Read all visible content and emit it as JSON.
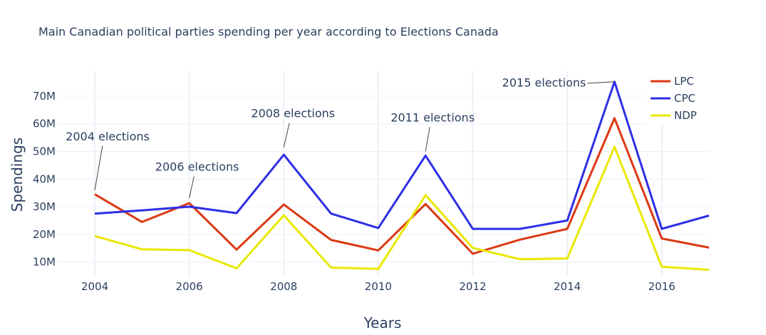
{
  "chart_data": {
    "type": "line",
    "title": "Main Canadian political parties spending per year according to Elections Canada",
    "xlabel": "Years",
    "ylabel": "Spendings",
    "x": [
      2004,
      2005,
      2006,
      2007,
      2008,
      2009,
      2010,
      2011,
      2012,
      2013,
      2014,
      2015,
      2016,
      2017
    ],
    "xlim": [
      2003.2,
      2017
    ],
    "ylim": [
      5000000,
      79000000
    ],
    "x_ticks": [
      2004,
      2006,
      2008,
      2010,
      2012,
      2014,
      2016
    ],
    "x_tick_labels": [
      "2004",
      "2006",
      "2008",
      "2010",
      "2012",
      "2014",
      "2016"
    ],
    "y_ticks": [
      10000000,
      20000000,
      30000000,
      40000000,
      50000000,
      60000000,
      70000000
    ],
    "y_tick_labels": [
      "10M",
      "20M",
      "30M",
      "40M",
      "50M",
      "60M",
      "70M"
    ],
    "grid": true,
    "legend_position": "top-right",
    "series": [
      {
        "name": "LPC",
        "color": "#dc3912",
        "values": [
          34500000,
          24500000,
          31300000,
          14500000,
          30800000,
          18000000,
          14200000,
          31000000,
          13000000,
          18100000,
          22000000,
          62000000,
          18500000,
          15200000
        ]
      },
      {
        "name": "CPC",
        "color": "#2e2ee6",
        "values": [
          27500000,
          28700000,
          30000000,
          27700000,
          48800000,
          27500000,
          22300000,
          48500000,
          22000000,
          22000000,
          25000000,
          75200000,
          22000000,
          26800000
        ]
      },
      {
        "name": "NDP",
        "color": "#e8e800",
        "values": [
          19400000,
          14600000,
          14300000,
          7700000,
          26900000,
          8000000,
          7500000,
          34200000,
          15100000,
          11000000,
          11300000,
          51700000,
          8300000,
          7200000
        ]
      }
    ],
    "annotations": [
      {
        "text": "2004 elections",
        "x": 2004,
        "y": 36000000
      },
      {
        "text": "2006 elections",
        "x": 2006,
        "y": 33200000
      },
      {
        "text": "2008 elections",
        "x": 2008,
        "y": 51500000
      },
      {
        "text": "2011 elections",
        "x": 2011,
        "y": 50000000
      },
      {
        "text": "2015 elections",
        "x": 2015,
        "y": 75200000
      }
    ]
  }
}
